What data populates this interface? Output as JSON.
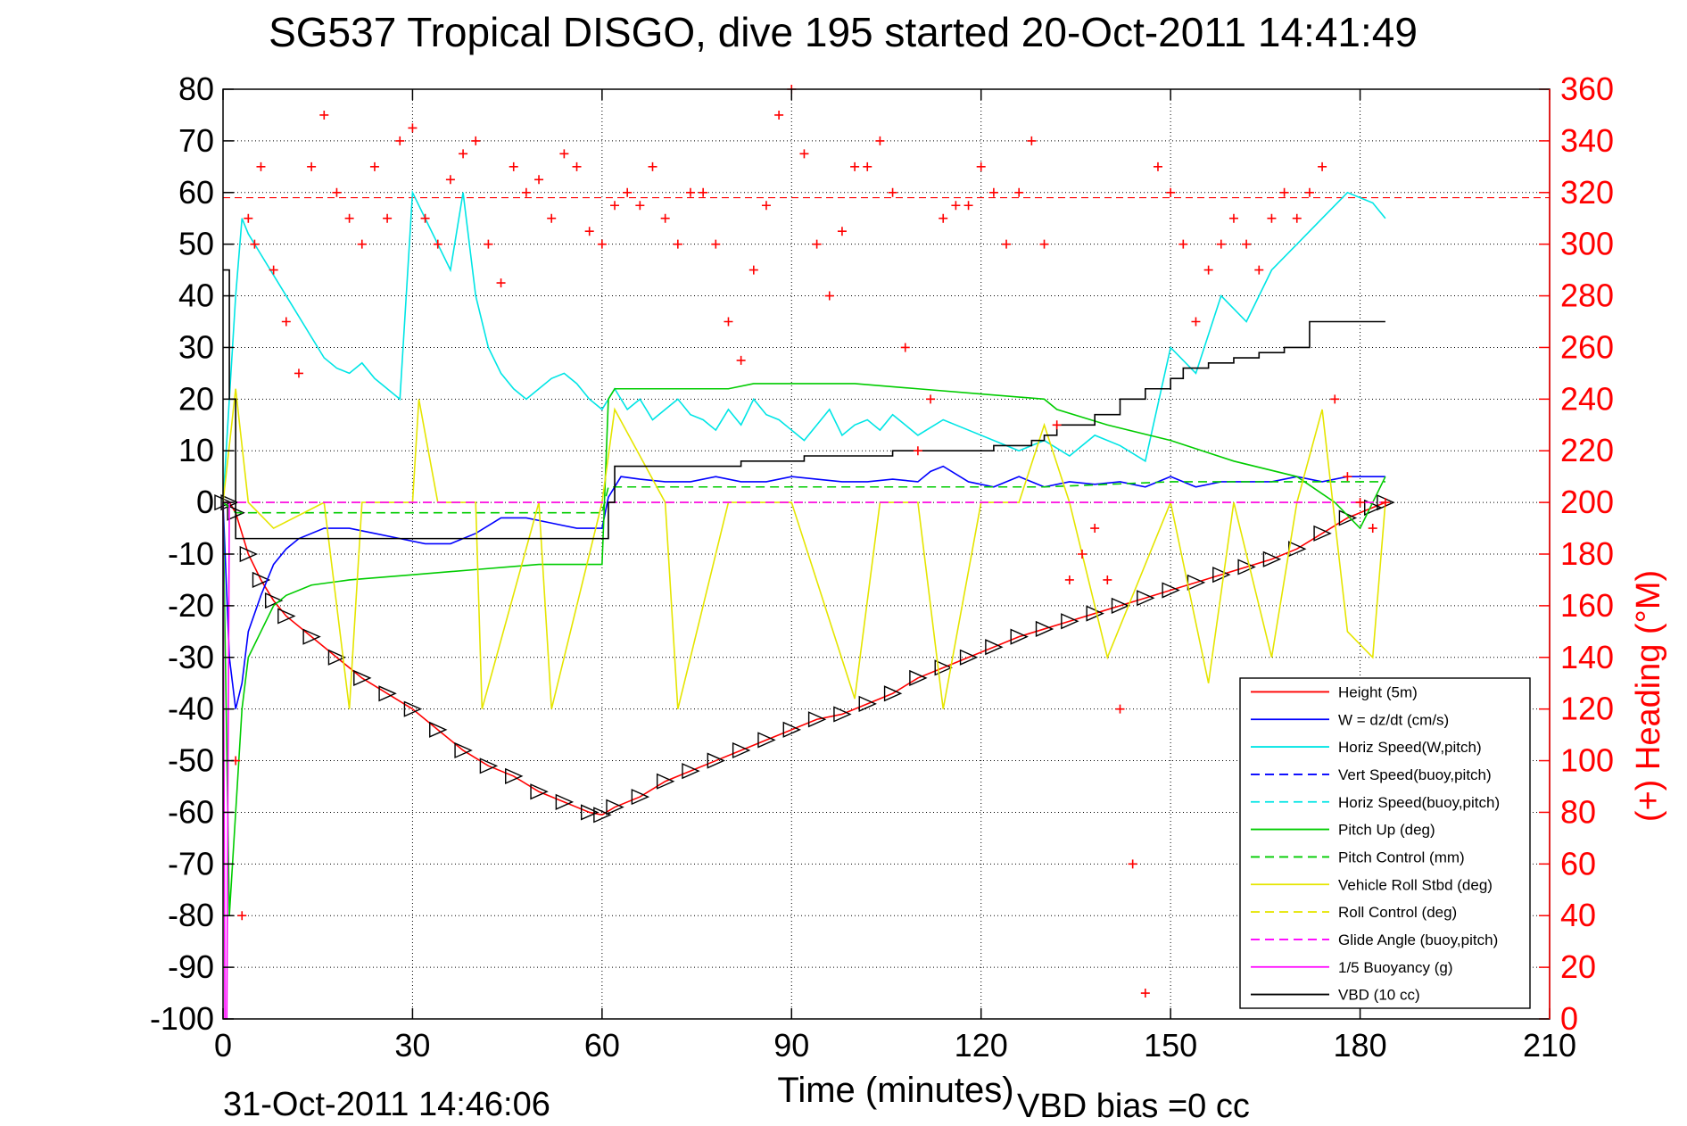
{
  "chart_data": {
    "type": "line",
    "title": "SG537 Tropical DISGO, dive 195 started 20-Oct-2011 14:41:49",
    "xlabel": "Time (minutes)",
    "ylabel": "",
    "y2label": "(+) Heading (°M)",
    "xlim": [
      0,
      210
    ],
    "ylim": [
      -100,
      80
    ],
    "y2lim": [
      0,
      360
    ],
    "xticks": [
      "0",
      "30",
      "60",
      "90",
      "120",
      "150",
      "180",
      "210"
    ],
    "yticks": [
      "80",
      "70",
      "60",
      "50",
      "40",
      "30",
      "20",
      "10",
      "0",
      "-10",
      "-20",
      "-30",
      "-40",
      "-50",
      "-60",
      "-70",
      "-80",
      "-90",
      "-100"
    ],
    "y2ticks": [
      "360",
      "340",
      "320",
      "300",
      "280",
      "260",
      "240",
      "220",
      "200",
      "180",
      "160",
      "140",
      "120",
      "100",
      "80",
      "60",
      "40",
      "20",
      "0"
    ],
    "grid": true,
    "legend_position": "bottom-right",
    "footer_left": "31-Oct-2011 14:46:06",
    "footer_right": "VBD bias =0 cc",
    "heading_reference": 318,
    "legend": [
      {
        "label": "Height (5m)",
        "color": "#ff0000",
        "dash": false
      },
      {
        "label": "W = dz/dt (cm/s)",
        "color": "#0000ff",
        "dash": false
      },
      {
        "label": "Horiz Speed(W,pitch)",
        "color": "#00e5e5",
        "dash": false
      },
      {
        "label": "Vert Speed(buoy,pitch)",
        "color": "#0000ff",
        "dash": true
      },
      {
        "label": "Horiz Speed(buoy,pitch)",
        "color": "#00e5e5",
        "dash": true
      },
      {
        "label": "Pitch Up (deg)",
        "color": "#00cc00",
        "dash": false
      },
      {
        "label": "Pitch Control (mm)",
        "color": "#00cc00",
        "dash": true
      },
      {
        "label": "Vehicle Roll Stbd (deg)",
        "color": "#e5e500",
        "dash": false
      },
      {
        "label": "Roll Control (deg)",
        "color": "#e5e500",
        "dash": true
      },
      {
        "label": "Glide Angle (buoy,pitch)",
        "color": "#ff00ff",
        "dash": true
      },
      {
        "label": "1/5 Buoyancy (g)",
        "color": "#ff00ff",
        "dash": false
      },
      {
        "label": "VBD (10 cc)",
        "color": "#000000",
        "dash": false
      }
    ],
    "series": [
      {
        "name": "Height (5m)",
        "color": "#ff0000",
        "style": "solid",
        "marker": "triangle",
        "x": [
          0,
          1,
          2,
          4,
          6,
          8,
          10,
          14,
          18,
          22,
          26,
          30,
          34,
          38,
          42,
          46,
          50,
          54,
          58,
          60,
          62,
          66,
          70,
          74,
          78,
          82,
          86,
          90,
          94,
          98,
          102,
          106,
          110,
          114,
          118,
          122,
          126,
          130,
          134,
          138,
          142,
          146,
          150,
          154,
          158,
          162,
          166,
          170,
          174,
          178,
          182,
          184
        ],
        "y": [
          0,
          0,
          -2,
          -10,
          -15,
          -19,
          -22,
          -26,
          -30,
          -34,
          -37,
          -40,
          -44,
          -48,
          -51,
          -53,
          -56,
          -58,
          -60,
          -60.5,
          -59,
          -57,
          -54,
          -52,
          -50,
          -48,
          -46,
          -44,
          -42,
          -41,
          -39,
          -37,
          -34,
          -32,
          -30,
          -28,
          -26,
          -24.5,
          -23,
          -21.5,
          -20,
          -18.5,
          -17,
          -15.5,
          -14,
          -12.5,
          -11,
          -9,
          -6,
          -3,
          -1,
          0
        ]
      },
      {
        "name": "W = dz/dt (cm/s)",
        "color": "#0000ff",
        "style": "solid",
        "x": [
          0,
          1,
          2,
          3,
          4,
          6,
          8,
          10,
          12,
          16,
          20,
          24,
          28,
          32,
          36,
          40,
          44,
          48,
          52,
          56,
          60,
          61,
          63,
          66,
          70,
          74,
          78,
          82,
          86,
          90,
          94,
          98,
          102,
          106,
          110,
          112,
          114,
          118,
          122,
          126,
          130,
          134,
          138,
          142,
          146,
          150,
          154,
          158,
          162,
          166,
          170,
          174,
          178,
          182,
          184
        ],
        "y": [
          0,
          -30,
          -40,
          -35,
          -25,
          -18,
          -12,
          -9,
          -7,
          -5,
          -5,
          -6,
          -7,
          -8,
          -8,
          -6,
          -3,
          -3,
          -4,
          -5,
          -5,
          1,
          5,
          4.5,
          4,
          4,
          5,
          4,
          4,
          5,
          4.5,
          4,
          4,
          4.5,
          4,
          6,
          7,
          4,
          3,
          5,
          3,
          4,
          3.5,
          4,
          3,
          5,
          3,
          4,
          4,
          4,
          5,
          4,
          5,
          5,
          5
        ]
      },
      {
        "name": "Horiz Speed(W,pitch)",
        "color": "#00e5e5",
        "style": "solid",
        "x": [
          0,
          2,
          3,
          4,
          6,
          8,
          10,
          12,
          14,
          16,
          18,
          20,
          22,
          24,
          26,
          28,
          30,
          32,
          34,
          36,
          38,
          40,
          42,
          44,
          46,
          48,
          50,
          52,
          54,
          56,
          58,
          60,
          62,
          64,
          66,
          68,
          70,
          72,
          74,
          76,
          78,
          80,
          82,
          84,
          86,
          88,
          90,
          92,
          94,
          96,
          98,
          100,
          102,
          104,
          106,
          108,
          110,
          114,
          118,
          122,
          126,
          130,
          134,
          138,
          142,
          146,
          150,
          154,
          158,
          162,
          166,
          170,
          174,
          178,
          182,
          184
        ],
        "y": [
          0,
          40,
          55,
          52,
          48,
          44,
          40,
          36,
          32,
          28,
          26,
          25,
          27,
          24,
          22,
          20,
          60,
          55,
          50,
          45,
          60,
          40,
          30,
          25,
          22,
          20,
          22,
          24,
          25,
          23,
          20,
          18,
          22,
          18,
          20,
          16,
          18,
          20,
          17,
          16,
          14,
          18,
          15,
          20,
          17,
          16,
          14,
          12,
          15,
          18,
          13,
          15,
          16,
          14,
          17,
          15,
          13,
          16,
          14,
          12,
          10,
          12,
          9,
          13,
          11,
          8,
          30,
          25,
          40,
          35,
          45,
          50,
          55,
          60,
          58,
          55
        ]
      },
      {
        "name": "Pitch Up (deg)",
        "color": "#00cc00",
        "style": "solid",
        "x": [
          0,
          1,
          2,
          3,
          4,
          6,
          8,
          10,
          14,
          20,
          30,
          40,
          50,
          58,
          60,
          61,
          62,
          70,
          80,
          84,
          90,
          100,
          110,
          120,
          130,
          132,
          140,
          150,
          160,
          170,
          176,
          180,
          184
        ],
        "y": [
          0,
          -80,
          -60,
          -40,
          -30,
          -25,
          -20,
          -18,
          -16,
          -15,
          -14,
          -13,
          -12,
          -12,
          -12,
          20,
          22,
          22,
          22,
          23,
          23,
          23,
          22,
          21,
          20,
          18,
          15,
          12,
          8,
          5,
          0,
          -5,
          5
        ]
      },
      {
        "name": "Pitch Control (mm)",
        "color": "#00cc00",
        "style": "dash",
        "x": [
          0,
          2,
          10,
          20,
          30,
          40,
          50,
          60,
          61,
          70,
          90,
          110,
          130,
          150,
          170,
          184
        ],
        "y": [
          0,
          -2,
          -2,
          -2,
          -2,
          -2,
          -2,
          -2,
          3,
          3,
          3,
          3,
          3,
          4,
          4,
          4
        ]
      },
      {
        "name": "Vehicle Roll Stbd (deg)",
        "color": "#e5e500",
        "style": "solid",
        "x": [
          0,
          2,
          4,
          8,
          16,
          20,
          22,
          30,
          31,
          34,
          40,
          41,
          50,
          52,
          60,
          62,
          70,
          72,
          80,
          90,
          100,
          104,
          110,
          114,
          120,
          126,
          130,
          134,
          140,
          150,
          156,
          160,
          166,
          170,
          174,
          178,
          182,
          184
        ],
        "y": [
          0,
          22,
          0,
          -5,
          0,
          -40,
          0,
          0,
          20,
          0,
          0,
          -40,
          0,
          -40,
          0,
          18,
          0,
          -40,
          0,
          0,
          -38,
          0,
          0,
          -40,
          0,
          0,
          15,
          0,
          -30,
          0,
          -35,
          0,
          -30,
          0,
          18,
          -25,
          -30,
          0
        ]
      },
      {
        "name": "Roll Control (deg)",
        "color": "#e5e500",
        "style": "dash",
        "x": [
          0,
          184
        ],
        "y": [
          0,
          0
        ]
      },
      {
        "name": "Glide Angle (buoy,pitch)",
        "color": "#ff00ff",
        "style": "dash",
        "x": [
          0,
          184
        ],
        "y": [
          0,
          0
        ]
      },
      {
        "name": "1/5 Buoyancy (g)",
        "color": "#ff00ff",
        "style": "solid",
        "x": [
          0,
          0.3,
          0.6,
          1
        ],
        "y": [
          0,
          -100,
          -100,
          0
        ]
      },
      {
        "name": "VBD (10 cc)",
        "color": "#000000",
        "style": "step",
        "x": [
          0,
          1,
          2,
          60,
          61,
          62,
          70,
          82,
          92,
          106,
          122,
          128,
          130,
          132,
          138,
          142,
          146,
          150,
          152,
          156,
          160,
          164,
          168,
          172,
          184
        ],
        "y": [
          45,
          20,
          -7,
          -7,
          0,
          7,
          7,
          8,
          9,
          10,
          11,
          12,
          13,
          15,
          17,
          20,
          22,
          24,
          26,
          27,
          28,
          29,
          30,
          35,
          35
        ]
      },
      {
        "name": "(+) Heading (°M)",
        "color": "#ff0000",
        "style": "marker-plus",
        "axis": "y2",
        "x": [
          2,
          3,
          4,
          5,
          6,
          8,
          10,
          12,
          14,
          16,
          18,
          20,
          22,
          24,
          26,
          28,
          30,
          32,
          34,
          36,
          38,
          40,
          42,
          44,
          46,
          48,
          50,
          52,
          54,
          56,
          58,
          60,
          62,
          64,
          66,
          68,
          70,
          72,
          74,
          76,
          78,
          80,
          82,
          84,
          86,
          88,
          90,
          92,
          94,
          96,
          98,
          100,
          102,
          104,
          106,
          108,
          110,
          112,
          114,
          116,
          118,
          120,
          122,
          124,
          126,
          128,
          130,
          132,
          134,
          136,
          138,
          140,
          142,
          144,
          146,
          148,
          150,
          152,
          154,
          156,
          158,
          160,
          162,
          164,
          166,
          168,
          170,
          172,
          174,
          176,
          178,
          180,
          182,
          184
        ],
        "y": [
          100,
          40,
          310,
          300,
          330,
          290,
          270,
          250,
          330,
          350,
          320,
          310,
          300,
          330,
          310,
          340,
          345,
          310,
          300,
          325,
          335,
          340,
          300,
          285,
          330,
          320,
          325,
          310,
          335,
          330,
          305,
          300,
          315,
          320,
          315,
          330,
          310,
          300,
          320,
          320,
          300,
          270,
          255,
          290,
          315,
          350,
          360,
          335,
          300,
          280,
          305,
          330,
          330,
          340,
          320,
          260,
          220,
          240,
          310,
          315,
          315,
          330,
          320,
          300,
          320,
          340,
          300,
          230,
          170,
          180,
          190,
          170,
          120,
          60,
          10,
          330,
          320,
          300,
          270,
          290,
          300,
          310,
          300,
          290,
          310,
          320,
          310,
          320,
          330,
          240,
          210,
          200,
          190,
          200
        ]
      }
    ]
  }
}
